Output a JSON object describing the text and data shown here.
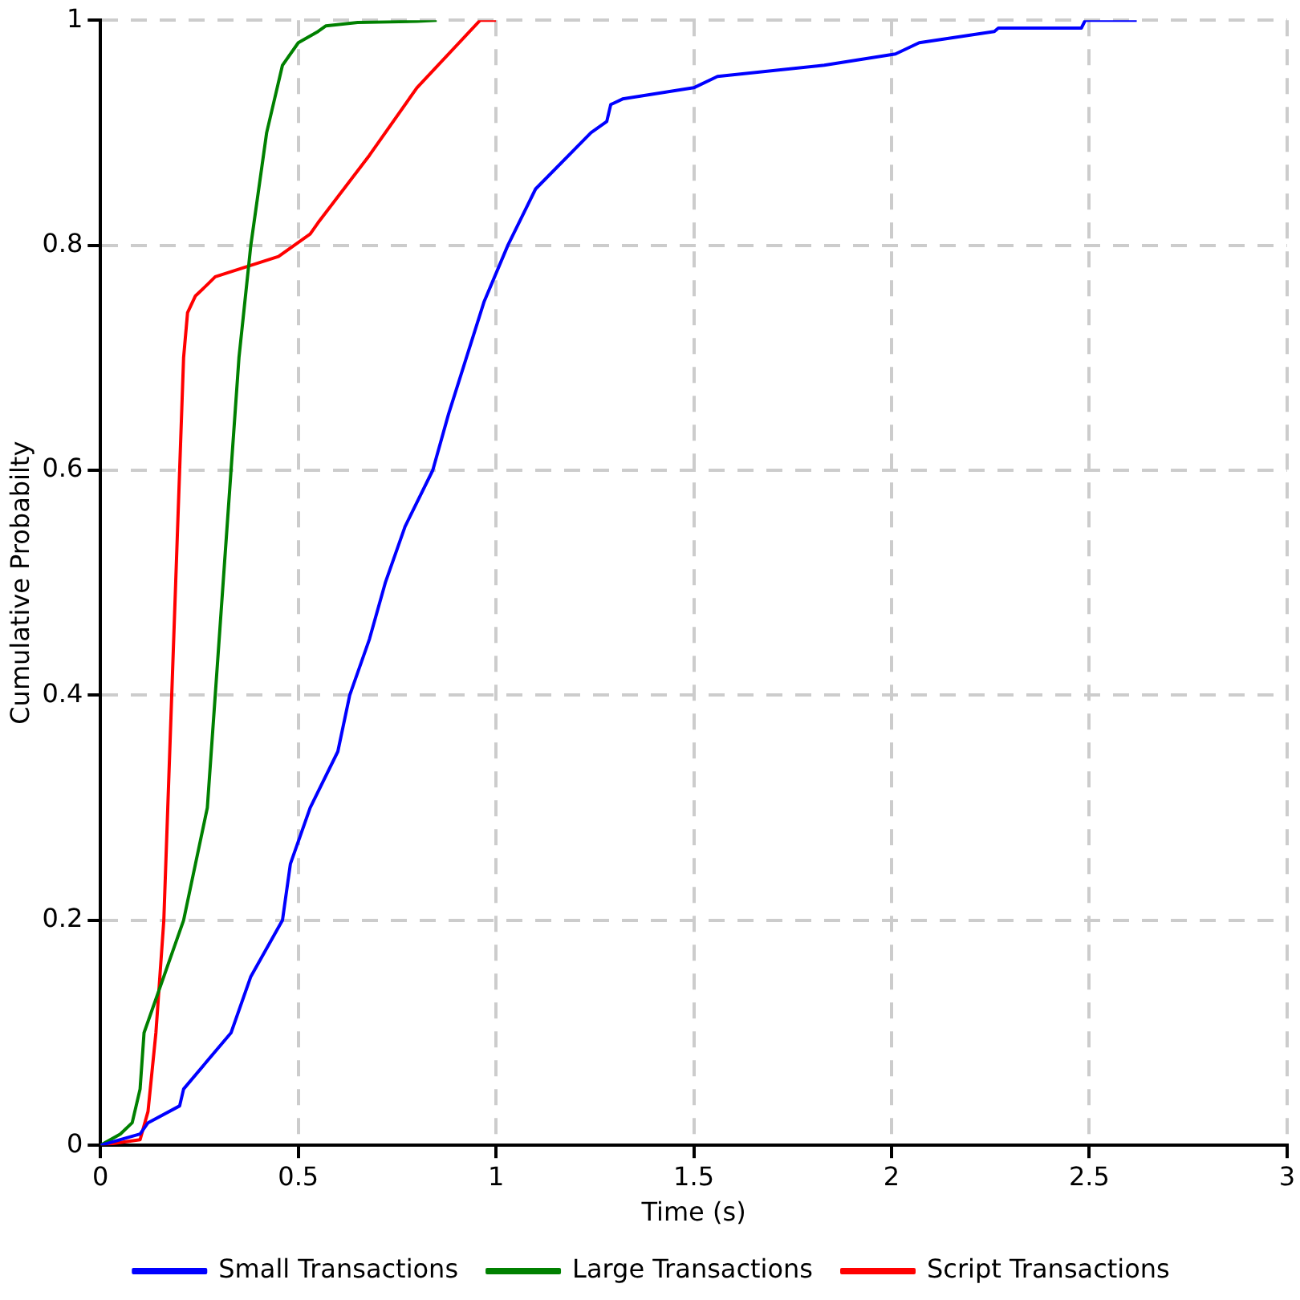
{
  "chart_data": {
    "type": "line",
    "xlabel": "Time (s)",
    "ylabel": "Cumulative Probabilty",
    "xlim": [
      0,
      3
    ],
    "xticks": [
      0,
      0.5,
      1,
      1.5,
      2,
      2.5,
      3
    ],
    "ylim": [
      0,
      1
    ],
    "yticks": [
      0,
      0.2,
      0.4,
      0.6,
      0.8,
      1
    ],
    "grid": true,
    "legend": "bottom",
    "marker": "none",
    "line_style": "solid",
    "series": [
      {
        "name": "Small Transactions",
        "color": "#0000ff",
        "x": [
          0,
          0.1,
          0.12,
          0.2,
          0.21,
          0.33,
          0.38,
          0.46,
          0.48,
          0.53,
          0.6,
          0.63,
          0.68,
          0.72,
          0.77,
          0.84,
          0.88,
          0.97,
          1.03,
          1.1,
          1.24,
          1.28,
          1.29,
          1.32,
          1.5,
          1.56,
          1.83,
          2.01,
          2.07,
          2.26,
          2.27,
          2.48,
          2.49,
          2.62
        ],
        "values": [
          0,
          0.01,
          0.02,
          0.035,
          0.05,
          0.1,
          0.15,
          0.2,
          0.25,
          0.3,
          0.35,
          0.4,
          0.45,
          0.5,
          0.55,
          0.6,
          0.65,
          0.75,
          0.8,
          0.85,
          0.9,
          0.91,
          0.925,
          0.93,
          0.94,
          0.95,
          0.96,
          0.97,
          0.98,
          0.99,
          0.993,
          0.993,
          1,
          1
        ]
      },
      {
        "name": "Large Transactions",
        "color": "#008000",
        "x": [
          0,
          0.05,
          0.08,
          0.1,
          0.11,
          0.21,
          0.24,
          0.27,
          0.29,
          0.31,
          0.33,
          0.35,
          0.38,
          0.4,
          0.42,
          0.44,
          0.46,
          0.5,
          0.55,
          0.57,
          0.65,
          0.8,
          0.85
        ],
        "values": [
          0,
          0.01,
          0.02,
          0.05,
          0.1,
          0.2,
          0.25,
          0.3,
          0.4,
          0.5,
          0.6,
          0.7,
          0.8,
          0.85,
          0.9,
          0.93,
          0.96,
          0.98,
          0.99,
          0.995,
          0.998,
          0.999,
          1
        ]
      },
      {
        "name": "Script Transactions",
        "color": "#ff0000",
        "x": [
          0,
          0.1,
          0.12,
          0.14,
          0.16,
          0.17,
          0.18,
          0.19,
          0.2,
          0.21,
          0.22,
          0.24,
          0.27,
          0.29,
          0.45,
          0.53,
          0.55,
          0.68,
          0.8,
          0.96,
          1
        ],
        "values": [
          0,
          0.005,
          0.03,
          0.1,
          0.2,
          0.3,
          0.4,
          0.5,
          0.6,
          0.7,
          0.74,
          0.755,
          0.765,
          0.772,
          0.79,
          0.81,
          0.82,
          0.88,
          0.94,
          1,
          1
        ]
      }
    ]
  }
}
